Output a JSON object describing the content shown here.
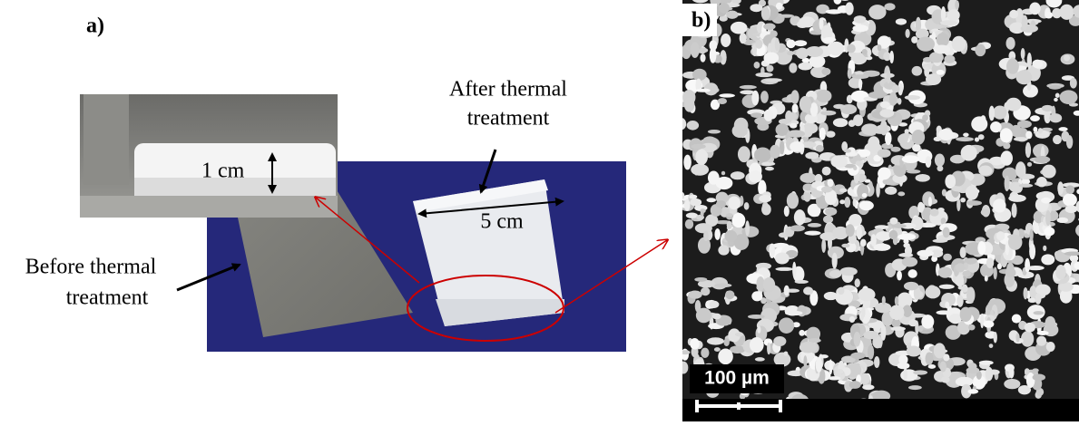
{
  "panel_a": {
    "label": "a)",
    "after_label": [
      "After thermal",
      "treatment"
    ],
    "before_label": [
      "Before thermal",
      "treatment"
    ],
    "thickness_label": "1 cm",
    "width_label": "5 cm"
  },
  "panel_b": {
    "label": "b)",
    "scale_bar_label": "100 µm"
  }
}
